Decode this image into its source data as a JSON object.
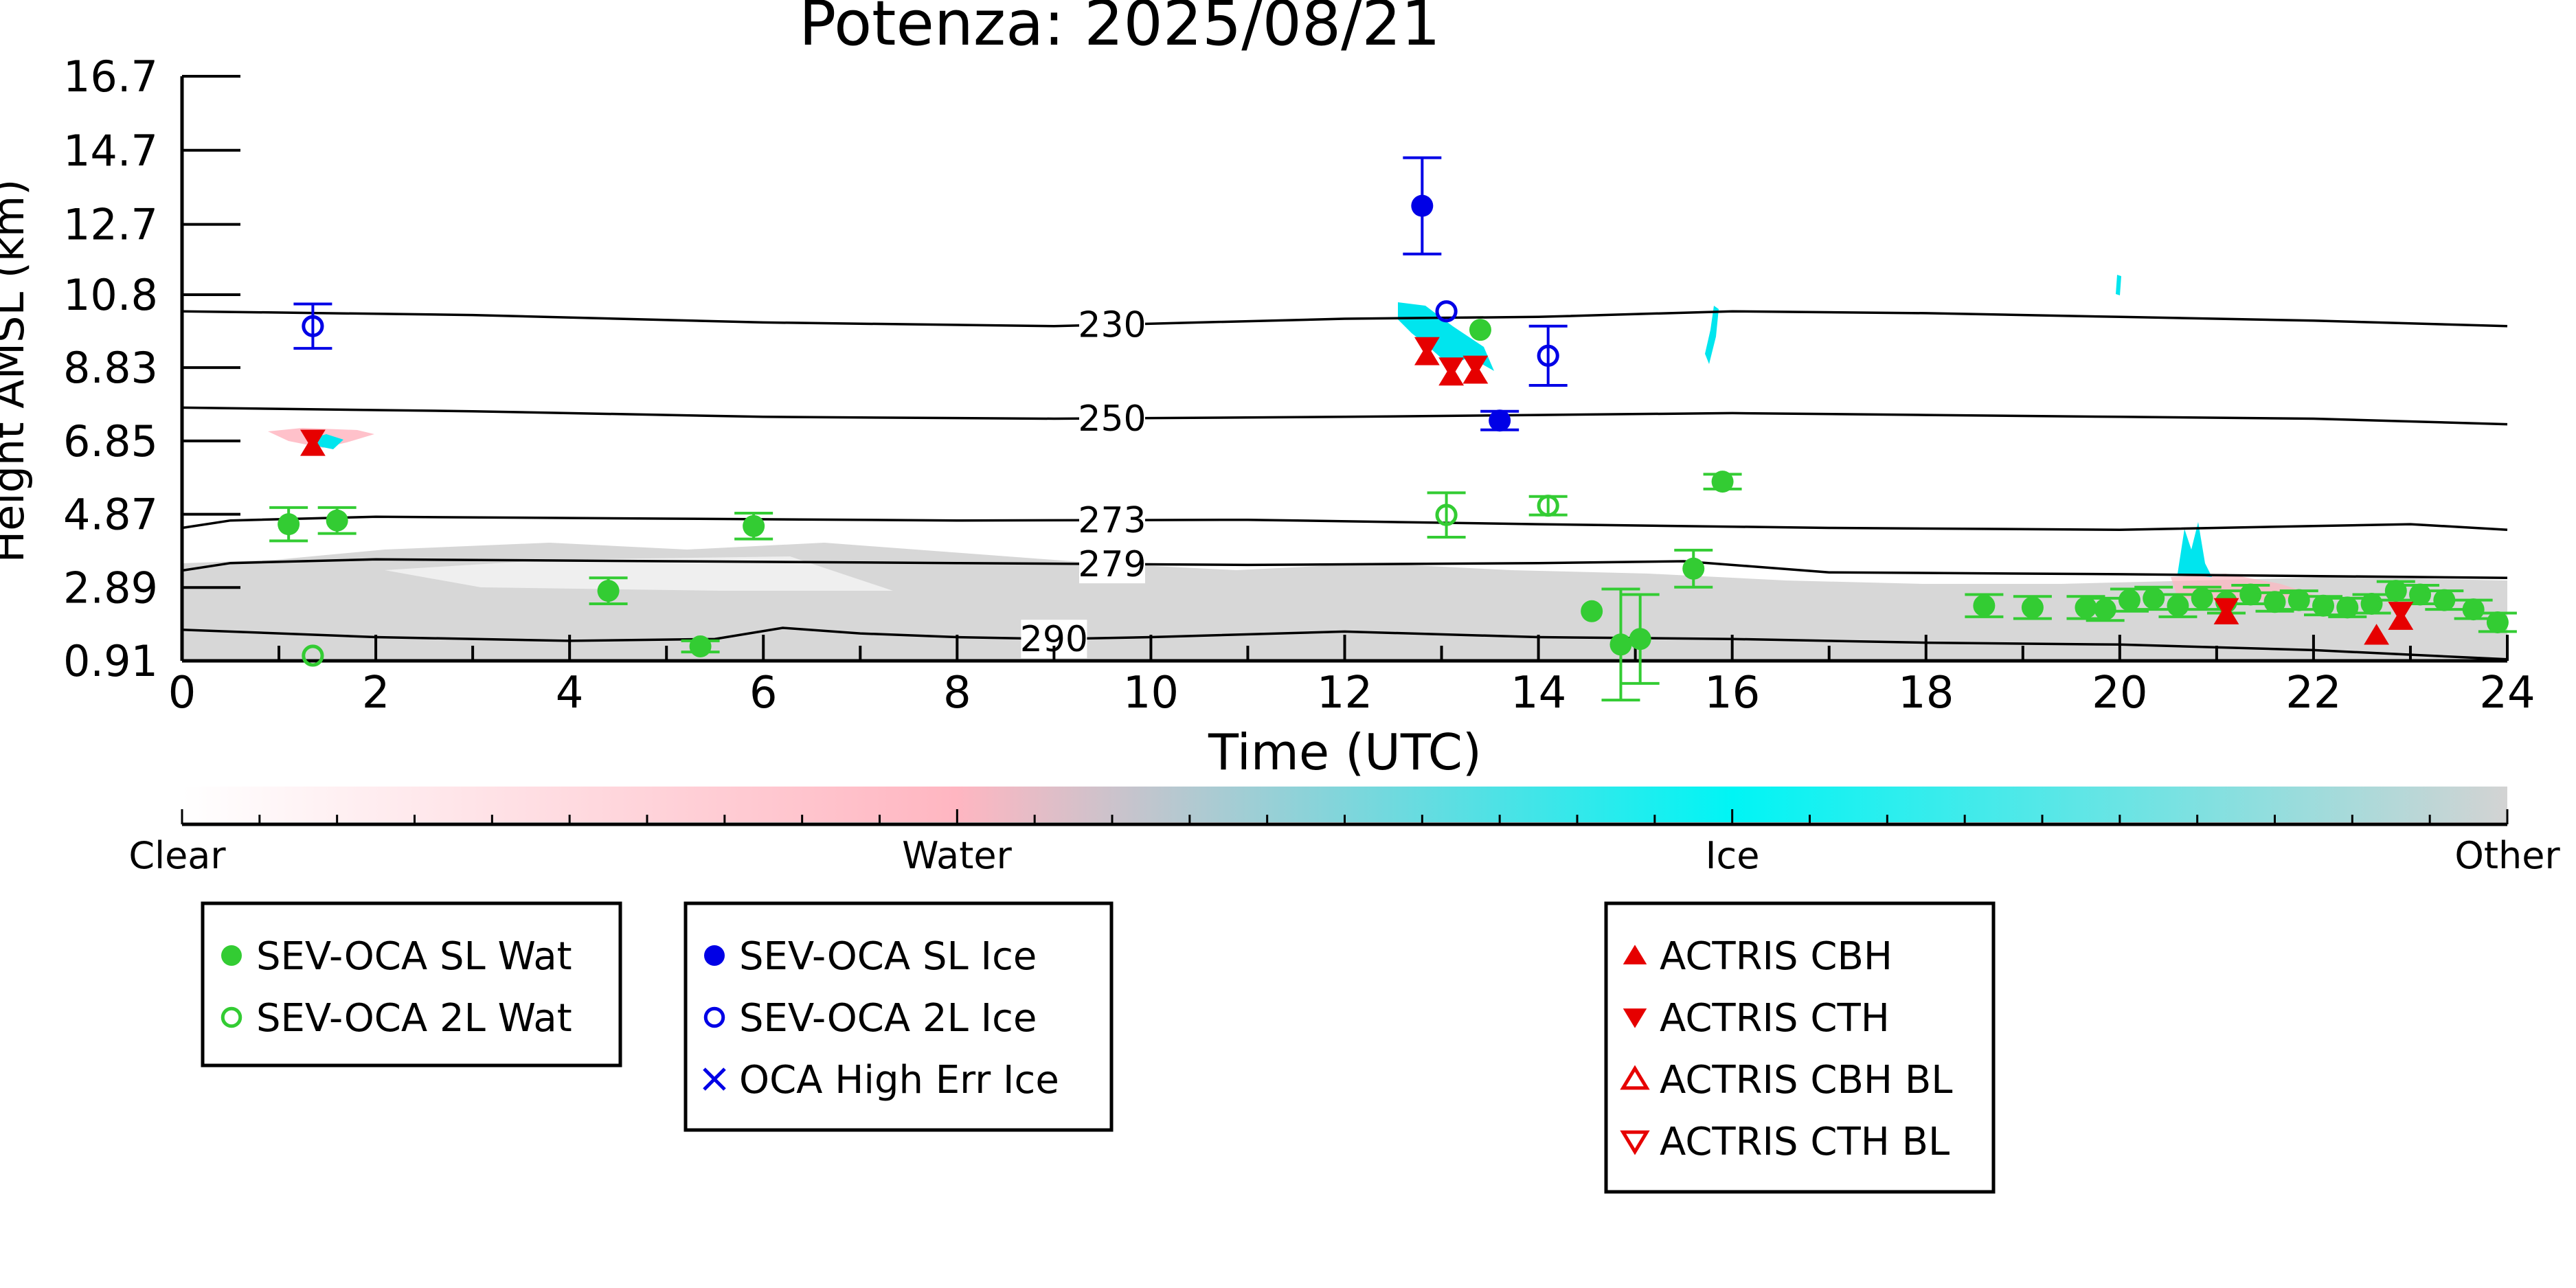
{
  "chart_data": {
    "type": "scatter",
    "title": "Potenza: 2025/08/21",
    "xlabel": "Time (UTC)",
    "ylabel": "Height AMSL (km)",
    "xlim": [
      0,
      24
    ],
    "ylim": [
      0.91,
      16.7
    ],
    "x_ticks": [
      "0",
      "2",
      "4",
      "6",
      "8",
      "10",
      "12",
      "14",
      "16",
      "18",
      "20",
      "22",
      "24"
    ],
    "y_ticks": [
      "0.91",
      "2.89",
      "4.87",
      "6.85",
      "8.83",
      "10.8",
      "12.7",
      "14.7",
      "16.7"
    ],
    "grid": false,
    "colors": {
      "sl_water": "#33cc33",
      "sl_ice": "#0000e6",
      "actris": "#e60000",
      "ice_cloud": "#00e5ee",
      "water_cloud": "#ffb6c1",
      "other_cloud": "#d3d3d3"
    },
    "colorbar": {
      "labels": [
        "Clear",
        "Water",
        "Ice",
        "Other"
      ],
      "stops": [
        "#ffffff",
        "#ffb6c1",
        "#00f5f5",
        "#d3d3d3"
      ]
    },
    "contours": [
      {
        "label": "230",
        "label_x": 9.6,
        "points": [
          [
            0,
            10.35
          ],
          [
            3,
            10.25
          ],
          [
            6,
            10.05
          ],
          [
            9,
            9.95
          ],
          [
            12,
            10.15
          ],
          [
            14,
            10.2
          ],
          [
            16,
            10.35
          ],
          [
            18,
            10.3
          ],
          [
            20,
            10.2
          ],
          [
            22,
            10.1
          ],
          [
            24,
            9.95
          ]
        ]
      },
      {
        "label": "250",
        "label_x": 9.6,
        "points": [
          [
            0,
            7.75
          ],
          [
            3,
            7.65
          ],
          [
            6,
            7.5
          ],
          [
            9,
            7.45
          ],
          [
            12,
            7.5
          ],
          [
            14,
            7.55
          ],
          [
            16,
            7.6
          ],
          [
            18,
            7.55
          ],
          [
            20,
            7.5
          ],
          [
            22,
            7.45
          ],
          [
            24,
            7.3
          ]
        ]
      },
      {
        "label": "273",
        "label_x": 9.6,
        "points": [
          [
            0,
            4.5
          ],
          [
            0.5,
            4.7
          ],
          [
            2,
            4.8
          ],
          [
            5,
            4.75
          ],
          [
            8,
            4.7
          ],
          [
            11,
            4.72
          ],
          [
            14,
            4.6
          ],
          [
            17,
            4.5
          ],
          [
            20,
            4.45
          ],
          [
            22,
            4.55
          ],
          [
            23,
            4.6
          ],
          [
            24,
            4.45
          ]
        ]
      },
      {
        "label": "279",
        "label_x": 9.6,
        "points": [
          [
            0,
            3.35
          ],
          [
            0.5,
            3.55
          ],
          [
            2,
            3.65
          ],
          [
            5,
            3.6
          ],
          [
            8,
            3.55
          ],
          [
            11,
            3.5
          ],
          [
            14,
            3.55
          ],
          [
            15.5,
            3.6
          ],
          [
            17,
            3.3
          ],
          [
            20,
            3.25
          ],
          [
            24,
            3.15
          ]
        ]
      },
      {
        "label": "290",
        "label_x": 9.0,
        "points": [
          [
            0,
            1.75
          ],
          [
            2,
            1.55
          ],
          [
            4,
            1.45
          ],
          [
            5.5,
            1.5
          ],
          [
            6.2,
            1.8
          ],
          [
            7,
            1.65
          ],
          [
            8,
            1.55
          ],
          [
            9,
            1.5
          ],
          [
            10,
            1.55
          ],
          [
            12,
            1.7
          ],
          [
            14,
            1.55
          ],
          [
            16,
            1.5
          ],
          [
            18,
            1.4
          ],
          [
            20,
            1.35
          ],
          [
            22,
            1.2
          ],
          [
            24,
            0.95
          ]
        ]
      }
    ],
    "series": [
      {
        "name": "SEV-OCA SL Wat",
        "marker": "filled-circle",
        "color": "#33cc33",
        "points": [
          [
            1.1,
            4.6,
            0.45
          ],
          [
            1.6,
            4.7,
            0.35
          ],
          [
            4.4,
            2.8,
            0.35
          ],
          [
            5.35,
            1.3,
            0.15
          ],
          [
            5.9,
            4.55,
            0.35
          ],
          [
            13.4,
            9.85,
            0
          ],
          [
            14.55,
            2.25,
            0
          ],
          [
            14.85,
            1.35,
            1.5
          ],
          [
            15.05,
            1.5,
            1.2
          ],
          [
            15.6,
            3.4,
            0.5
          ],
          [
            15.9,
            5.75,
            0.2
          ],
          [
            18.6,
            2.4,
            0.3
          ],
          [
            19.1,
            2.35,
            0.3
          ],
          [
            19.65,
            2.35,
            0.3
          ],
          [
            19.85,
            2.3,
            0.3
          ],
          [
            20.1,
            2.55,
            0.3
          ],
          [
            20.35,
            2.6,
            0.3
          ],
          [
            20.6,
            2.4,
            0.3
          ],
          [
            20.85,
            2.6,
            0.3
          ],
          [
            21.1,
            2.5,
            0.3
          ],
          [
            21.35,
            2.7,
            0.25
          ],
          [
            21.6,
            2.5,
            0.25
          ],
          [
            21.85,
            2.55,
            0.25
          ],
          [
            22.1,
            2.4,
            0.25
          ],
          [
            22.35,
            2.35,
            0.25
          ],
          [
            22.6,
            2.45,
            0.25
          ],
          [
            22.85,
            2.8,
            0.25
          ],
          [
            23.1,
            2.7,
            0.25
          ],
          [
            23.35,
            2.55,
            0.25
          ],
          [
            23.65,
            2.3,
            0.25
          ],
          [
            23.9,
            1.95,
            0.25
          ]
        ]
      },
      {
        "name": "SEV-OCA 2L Wat",
        "marker": "open-circle",
        "color": "#33cc33",
        "points": [
          [
            1.35,
            1.05,
            0
          ],
          [
            13.05,
            4.85,
            0.6
          ],
          [
            14.1,
            5.1,
            0.25
          ]
        ]
      },
      {
        "name": "SEV-OCA SL Ice",
        "marker": "filled-circle",
        "color": "#0000e6",
        "points": [
          [
            12.8,
            13.2,
            1.3
          ],
          [
            13.6,
            7.4,
            0.25
          ]
        ]
      },
      {
        "name": "SEV-OCA 2L Ice",
        "marker": "open-circle",
        "color": "#0000e6",
        "points": [
          [
            1.35,
            9.95,
            0.6
          ],
          [
            13.05,
            10.35,
            0
          ],
          [
            14.1,
            9.15,
            0.8
          ]
        ]
      },
      {
        "name": "OCA High Err Ice",
        "marker": "cross",
        "color": "#0000e6",
        "points": []
      },
      {
        "name": "ACTRIS CBH",
        "marker": "filled-triangle-up",
        "color": "#e60000",
        "points": [
          [
            1.35,
            6.7
          ],
          [
            12.85,
            9.15
          ],
          [
            13.1,
            8.6
          ],
          [
            13.35,
            8.65
          ],
          [
            21.1,
            2.15
          ],
          [
            22.65,
            1.6
          ],
          [
            22.9,
            2.0
          ]
        ]
      },
      {
        "name": "ACTRIS CTH",
        "marker": "filled-triangle-down",
        "color": "#e60000",
        "points": [
          [
            1.35,
            6.9
          ],
          [
            12.85,
            9.4
          ],
          [
            13.1,
            8.85
          ],
          [
            13.35,
            8.9
          ],
          [
            21.1,
            2.35
          ],
          [
            22.9,
            2.25
          ]
        ]
      },
      {
        "name": "ACTRIS CBH BL",
        "marker": "open-triangle-up",
        "color": "#e60000",
        "points": []
      },
      {
        "name": "ACTRIS CTH BL",
        "marker": "open-triangle-down",
        "color": "#e60000",
        "points": []
      }
    ],
    "legend_groups": [
      [
        "SEV-OCA SL Wat",
        "SEV-OCA 2L Wat"
      ],
      [
        "SEV-OCA SL Ice",
        "SEV-OCA 2L Ice",
        "OCA High Err Ice"
      ],
      [
        "ACTRIS CBH",
        "ACTRIS CTH",
        "ACTRIS CBH BL",
        "ACTRIS CTH BL"
      ]
    ]
  }
}
